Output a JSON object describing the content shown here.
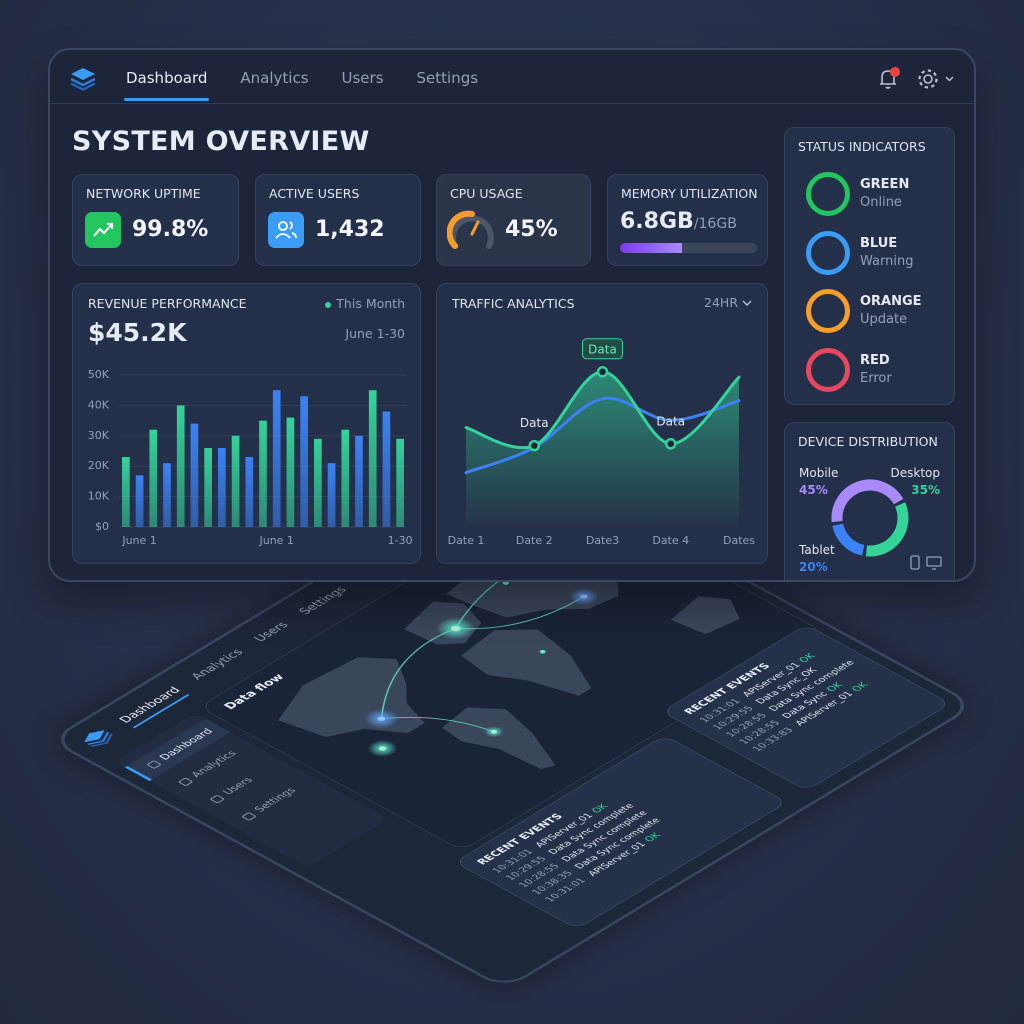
{
  "top_nav": [
    "Dashboard",
    "Analytics",
    "Users",
    "Settings"
  ],
  "page_title": "SYSTEM OVERVIEW",
  "kpis": [
    {
      "label": "NETWORK UPTIME",
      "value": "99.8%"
    },
    {
      "label": "ACTIVE USERS",
      "value": "1,432"
    },
    {
      "label": "CPU USAGE",
      "value": "45%"
    },
    {
      "label": "MEMORY UTILIZATION",
      "value": "6.8GB",
      "total": "/16GB"
    }
  ],
  "chart_data": [
    {
      "type": "bar",
      "title": "REVENUE PERFORMANCE",
      "legend_label": "This Month",
      "amount": "$45.2K",
      "period": "June 1-30",
      "categories": [
        null,
        "June 1",
        null,
        null,
        null,
        null,
        null,
        null,
        null,
        null,
        null,
        "June 1",
        null,
        null,
        null,
        null,
        null,
        null,
        null,
        null,
        "1-30"
      ],
      "values": [
        23000,
        17000,
        32000,
        21000,
        40000,
        34000,
        26000,
        26000,
        30000,
        23000,
        35000,
        45000,
        36000,
        43000,
        29000,
        21000,
        32000,
        30000,
        45000,
        38000,
        29000
      ],
      "colors": [
        "#34d399",
        "#3b82f6"
      ],
      "ylim": [
        0,
        50000
      ],
      "yticks": [
        {
          "value": 0,
          "label": "$0"
        },
        {
          "value": 10000,
          "label": "10K"
        },
        {
          "value": 20000,
          "label": "20K"
        },
        {
          "value": 30000,
          "label": "30K"
        },
        {
          "value": 40000,
          "label": "40K"
        },
        {
          "value": 50000,
          "label": "50K"
        }
      ],
      "grid": true
    },
    {
      "type": "line",
      "title": "TRAFFIC ANALYTICS",
      "range_label": "24HR",
      "categories": [
        "Date 1",
        "Date 2",
        "Date3",
        "Date 4",
        "Dates"
      ],
      "series": [
        {
          "color": "#34d399",
          "values": [
            53,
            43,
            84,
            44,
            81
          ]
        },
        {
          "color": "#3b82f6",
          "values": [
            28,
            42,
            69,
            57,
            68
          ]
        }
      ],
      "annotations": [
        "Data",
        "Data",
        "Data"
      ],
      "ylim": [
        0,
        100
      ]
    },
    {
      "type": "pie",
      "title": "DEVICE DISTRIBUTION",
      "donut": true,
      "categories": [
        "Mobile",
        "Desktop",
        "Tablet"
      ],
      "values": [
        45,
        35,
        20
      ],
      "value_labels": [
        "45%",
        "35%",
        "20%"
      ],
      "colors": [
        "#a78bfa",
        "#34d399",
        "#3b82f6"
      ]
    }
  ],
  "status_indicators": {
    "title": "STATUS INDICATORS",
    "items": [
      {
        "name": "GREEN",
        "status": "Online",
        "color": "#22c55e"
      },
      {
        "name": "BLUE",
        "status": "Warning",
        "color": "#3b9cf5"
      },
      {
        "name": "ORANGE",
        "status": "Update",
        "color": "#f59e2b"
      },
      {
        "name": "RED",
        "status": "Error",
        "color": "#e5485f"
      }
    ]
  },
  "tablet": {
    "nav": [
      "Dashboard",
      "Analytics",
      "Users",
      "Settings"
    ],
    "sidebar": [
      "Dashboard",
      "Analytics",
      "Users",
      "Settings"
    ],
    "map_title": "Data flow",
    "event_panels": [
      {
        "title": "RECENT EVENTS",
        "events": [
          {
            "time": "10:31:01",
            "text": "APIServer_01",
            "status": "OK"
          },
          {
            "time": "10:29:55",
            "text": "Data Sync complete"
          },
          {
            "time": "10:28:55",
            "text": "Data Sync complete"
          },
          {
            "time": "10:38:35",
            "text": "Data Sync complete"
          },
          {
            "time": "10:31:01",
            "text": "APIServer_01",
            "status": "OK"
          }
        ]
      },
      {
        "title": "RECENT EVENTS",
        "events": [
          {
            "time": "10:31:01",
            "text": "APIServer_01",
            "status": "OK"
          },
          {
            "time": "10:29:55",
            "text": "Data Sync_OK"
          },
          {
            "time": "10:28:55",
            "text": "Data Sync complete"
          },
          {
            "time": "10:28:55",
            "text": "Data Sync",
            "status": "OK"
          },
          {
            "time": "10:33:83",
            "text": "APIServer_01",
            "status": "OK"
          }
        ]
      }
    ]
  }
}
